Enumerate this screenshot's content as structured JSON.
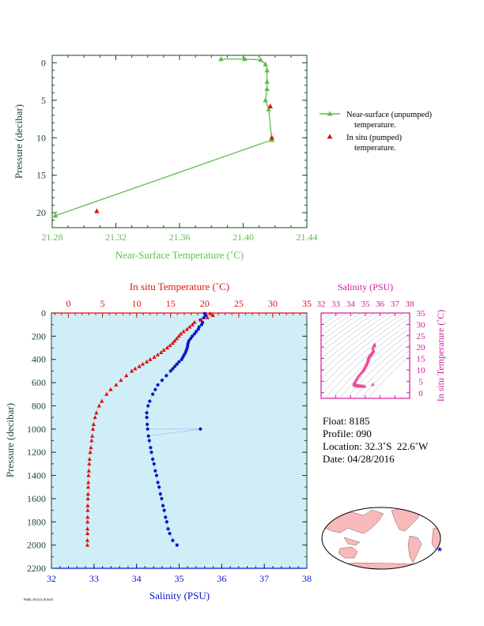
{
  "colors": {
    "green": "#5cbf4a",
    "red": "#e01010",
    "blue": "#0a16c8",
    "magenta": "#d4189e",
    "pink": "#f0489a",
    "axis_dark": "#1a4a28",
    "plot_bg": "#d0eef8",
    "land": "#f7b9b9",
    "ocean": "#ffffff"
  },
  "chart_data": [
    {
      "id": "near-surface",
      "type": "line",
      "title": "",
      "xlabel": "Near-Surface Temperature (˚C)",
      "ylabel": "Pressure (decibar)",
      "xlim": [
        21.28,
        21.44
      ],
      "ylim": [
        22,
        -1
      ],
      "xticks": [
        "21.28",
        "21.32",
        "21.36",
        "21.40",
        "21.44"
      ],
      "yticks": [
        "0",
        "5",
        "10",
        "15",
        "20"
      ],
      "series": [
        {
          "name": "Near-surface (unpumped) temperature.",
          "marker": "triangle",
          "line": true,
          "x": [
            21.386,
            21.401,
            21.411,
            21.414,
            21.415,
            21.415,
            21.415,
            21.414,
            21.416,
            21.418,
            21.282
          ],
          "y": [
            -0.5,
            -0.5,
            -0.4,
            0.2,
            1.0,
            2.5,
            3.5,
            5.0,
            6.2,
            10.3,
            20.4
          ]
        },
        {
          "name": "In situ (pumped) temperature.",
          "marker": "triangle",
          "line": false,
          "x": [
            21.417,
            21.418,
            21.308
          ],
          "y": [
            5.8,
            10.0,
            19.8
          ]
        }
      ]
    },
    {
      "id": "profile",
      "type": "scatter",
      "xlabel": "Salinity (PSU)",
      "x2label": "In situ Temperature (˚C)",
      "ylabel": "Pressure (decibar)",
      "salinity_lim": [
        32,
        38
      ],
      "temperature_lim": [
        -2.5,
        35
      ],
      "ylim": [
        2200,
        0
      ],
      "salinity_ticks": [
        "32",
        "33",
        "34",
        "35",
        "36",
        "37",
        "38"
      ],
      "temperature_ticks": [
        "0",
        "5",
        "10",
        "15",
        "20",
        "25",
        "30",
        "35"
      ],
      "pressure_ticks": [
        "0",
        "200",
        "400",
        "600",
        "800",
        "1000",
        "1200",
        "1400",
        "1600",
        "1800",
        "2000",
        "2200"
      ],
      "temperature_profile": {
        "p": [
          5,
          20,
          40,
          60,
          80,
          100,
          120,
          140,
          160,
          180,
          200,
          220,
          240,
          260,
          280,
          300,
          320,
          340,
          360,
          380,
          400,
          420,
          440,
          460,
          480,
          500,
          540,
          580,
          620,
          660,
          700,
          760,
          800,
          860,
          900,
          960,
          1000,
          1060,
          1100,
          1160,
          1200,
          1260,
          1300,
          1360,
          1400,
          1460,
          1500,
          1560,
          1600,
          1660,
          1700,
          1760,
          1800,
          1860,
          1900,
          1960,
          2000
        ],
        "t": [
          20.8,
          21.2,
          20.4,
          19.5,
          18.5,
          18.2,
          17.8,
          17.4,
          16.9,
          16.5,
          16.2,
          15.9,
          15.6,
          15.3,
          14.9,
          14.5,
          14.0,
          13.6,
          13.1,
          12.6,
          12.0,
          11.5,
          10.9,
          10.4,
          9.8,
          9.3,
          8.5,
          7.7,
          7.0,
          6.2,
          5.6,
          4.9,
          4.5,
          4.1,
          3.9,
          3.7,
          3.6,
          3.5,
          3.4,
          3.3,
          3.2,
          3.1,
          3.05,
          3.0,
          2.95,
          2.92,
          2.9,
          2.88,
          2.86,
          2.84,
          2.83,
          2.82,
          2.81,
          2.8,
          2.8,
          2.79,
          2.78
        ]
      },
      "salinity_profile": {
        "p": [
          5,
          20,
          40,
          60,
          80,
          100,
          120,
          140,
          160,
          180,
          200,
          220,
          240,
          260,
          280,
          300,
          320,
          340,
          360,
          380,
          400,
          420,
          440,
          460,
          480,
          500,
          540,
          580,
          620,
          660,
          700,
          760,
          800,
          860,
          900,
          960,
          1000,
          1000,
          1060,
          1100,
          1160,
          1200,
          1260,
          1300,
          1360,
          1400,
          1460,
          1500,
          1560,
          1600,
          1660,
          1700,
          1760,
          1800,
          1860,
          1900,
          1960,
          2000
        ],
        "s": [
          35.6,
          35.63,
          35.58,
          35.5,
          35.55,
          35.53,
          35.47,
          35.45,
          35.4,
          35.36,
          35.31,
          35.27,
          35.23,
          35.21,
          35.2,
          35.19,
          35.17,
          35.15,
          35.12,
          35.09,
          35.06,
          35.0,
          34.95,
          34.9,
          34.85,
          34.8,
          34.7,
          34.6,
          34.5,
          34.44,
          34.38,
          34.31,
          34.27,
          34.24,
          34.24,
          34.25,
          34.26,
          35.5,
          34.28,
          34.3,
          34.33,
          34.35,
          34.38,
          34.41,
          34.44,
          34.47,
          34.5,
          34.53,
          34.56,
          34.59,
          34.62,
          34.65,
          34.68,
          34.71,
          34.74,
          34.78,
          34.85,
          34.95
        ]
      },
      "inset": {
        "type": "ts-diagram",
        "xlabel": "Salinity (PSU)",
        "ylabel": "In situ Temperature (˚C)",
        "xlim": [
          32,
          38
        ],
        "ylim": [
          -2.5,
          35
        ],
        "xticks": [
          "32",
          "33",
          "34",
          "35",
          "36",
          "37",
          "38"
        ],
        "yticks": [
          "0",
          "5",
          "10",
          "15",
          "20",
          "25",
          "30",
          "35"
        ]
      }
    }
  ],
  "float_info": {
    "float_label": "Float:",
    "float_value": "8185",
    "profile_label": "Profile:",
    "profile_value": "090",
    "location_label": "Location:",
    "location_value": "32.3˚S  22.6˚W",
    "date_label": "Date:",
    "date_value": "04/28/2016"
  },
  "map": {
    "marker_icon": "star-icon",
    "lat": -32.3,
    "lon": -22.6
  },
  "footer_text": "PMEL/NOAA 2016/05"
}
